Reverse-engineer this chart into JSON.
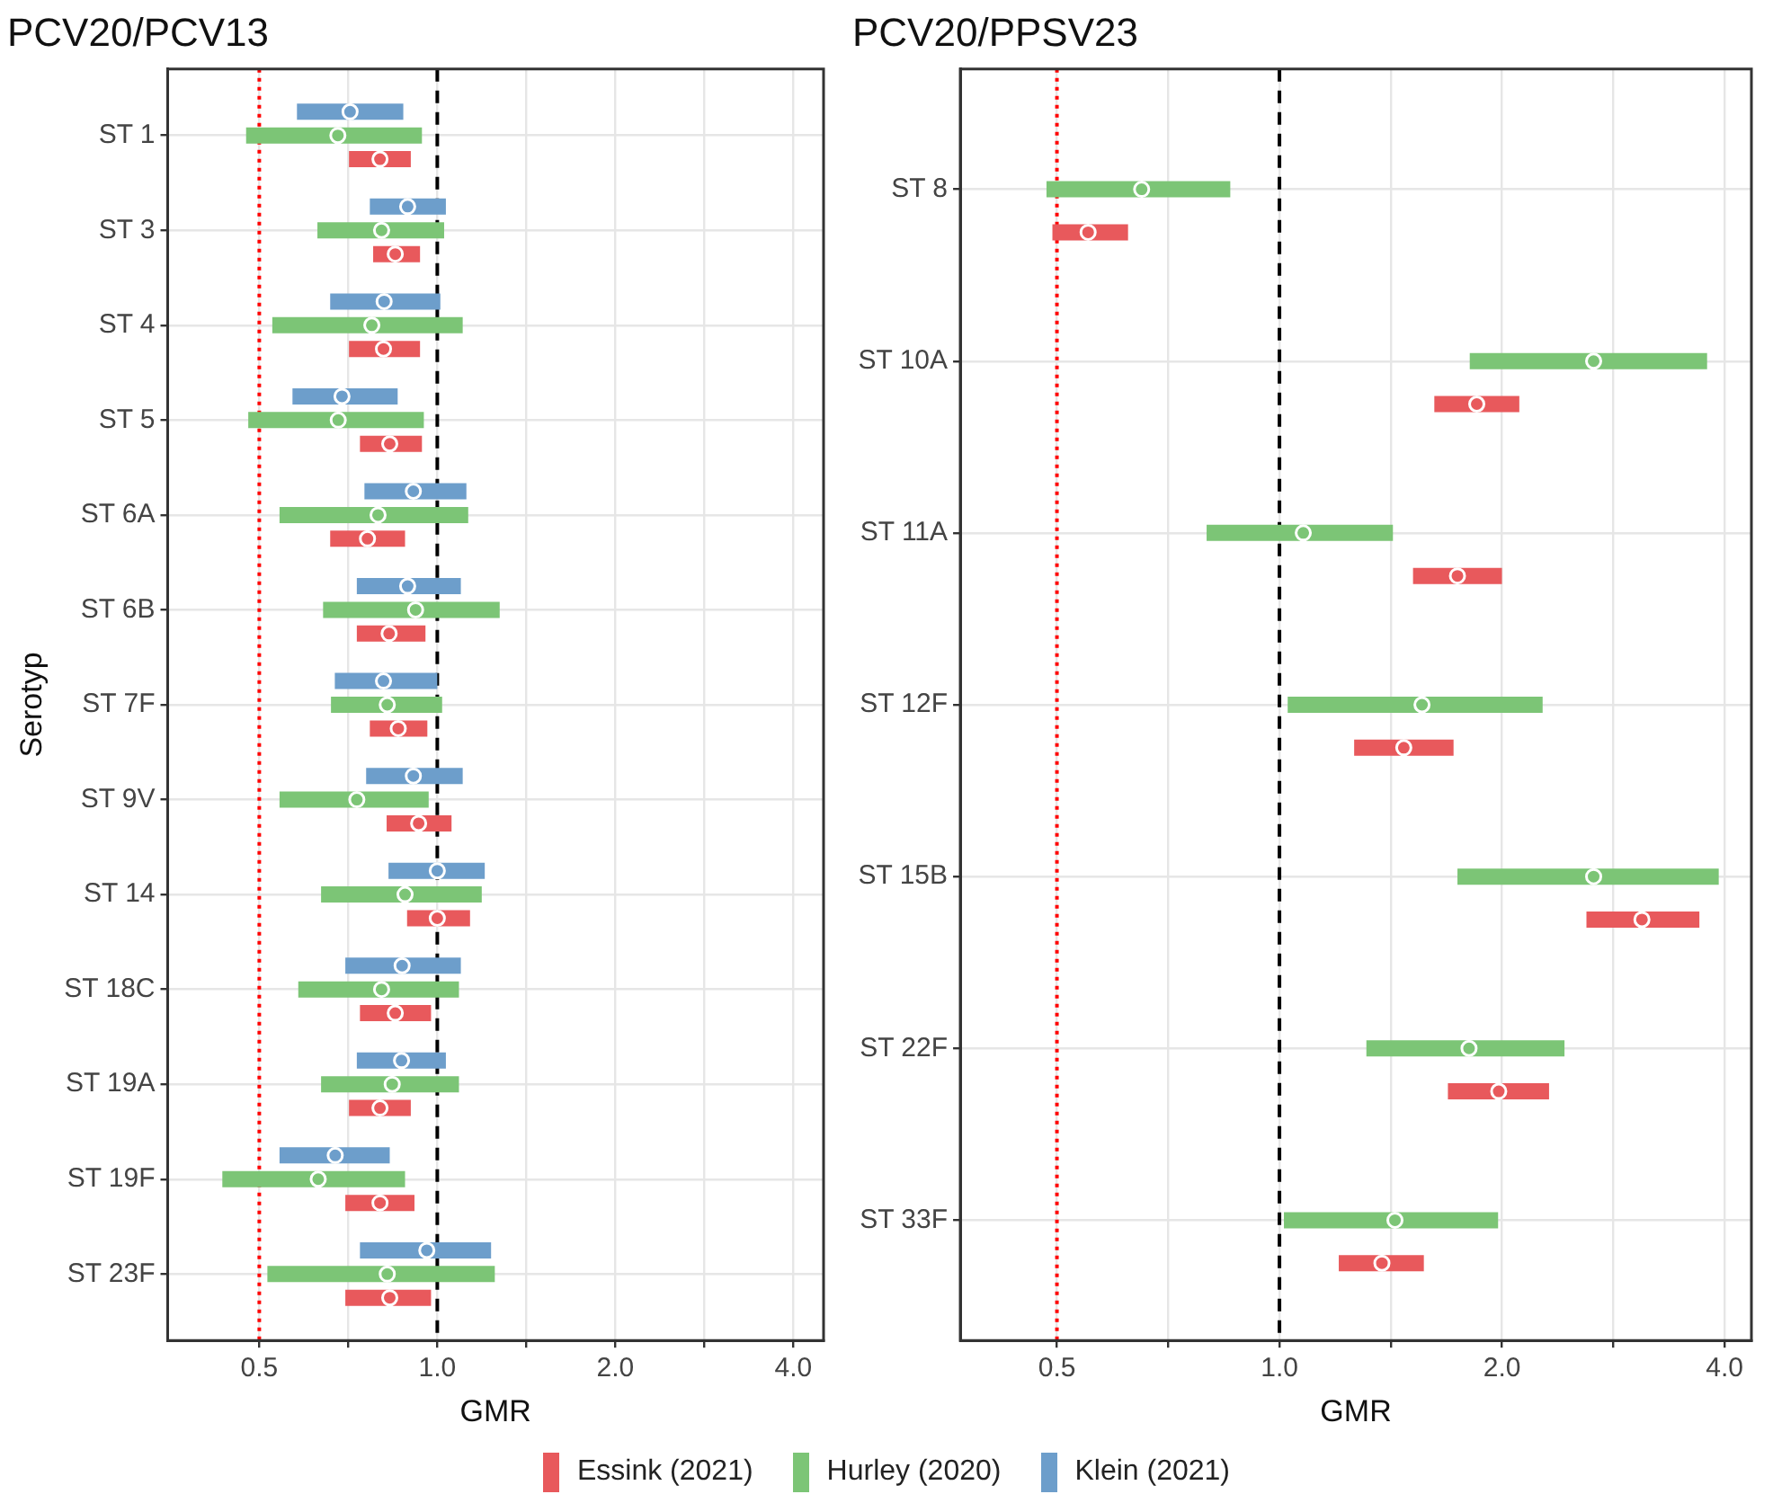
{
  "chart_data": [
    {
      "type": "scatter",
      "title": "PCV20/PCV13",
      "xlabel": "GMR",
      "ylabel": "Serotyp",
      "orientation": "horizontal",
      "log": "x",
      "categories": [
        "ST 1",
        "ST 3",
        "ST 4",
        "ST 5",
        "ST 6A",
        "ST 6B",
        "ST 7F",
        "ST 9V",
        "ST 14",
        "ST 18C",
        "ST 19A",
        "ST 19F",
        "ST 23F"
      ],
      "series": [
        {
          "name": "Essink (2021)",
          "color": "#e8595c",
          "values": [
            0.8,
            0.849,
            0.811,
            0.831,
            0.762,
            0.829,
            0.859,
            0.93,
            1.0,
            0.849,
            0.8,
            0.8,
            0.831
          ],
          "errors": [
            [
              0.709,
              0.902
            ],
            [
              0.779,
              0.935
            ],
            [
              0.709,
              0.935
            ],
            [
              0.74,
              0.942
            ],
            [
              0.659,
              0.882
            ],
            [
              0.731,
              0.955
            ],
            [
              0.769,
              0.962
            ],
            [
              0.821,
              1.057
            ],
            [
              0.889,
              1.136
            ],
            [
              0.74,
              0.976
            ],
            [
              0.709,
              0.902
            ],
            [
              0.699,
              0.915
            ],
            [
              0.699,
              0.976
            ]
          ]
        },
        {
          "name": "Hurley (2020)",
          "color": "#7cc576",
          "values": [
            0.679,
            0.805,
            0.775,
            0.68,
            0.794,
            0.919,
            0.823,
            0.731,
            0.882,
            0.805,
            0.839,
            0.629,
            0.823
          ],
          "errors": [
            [
              0.475,
              0.942
            ],
            [
              0.627,
              1.027
            ],
            [
              0.526,
              1.104
            ],
            [
              0.479,
              0.949
            ],
            [
              0.541,
              1.128
            ],
            [
              0.641,
              1.275
            ],
            [
              0.661,
              1.019
            ],
            [
              0.541,
              0.967
            ],
            [
              0.636,
              1.189
            ],
            [
              0.582,
              1.088
            ],
            [
              0.636,
              1.088
            ],
            [
              0.433,
              0.882
            ],
            [
              0.516,
              1.251
            ]
          ]
        },
        {
          "name": "Klein (2021)",
          "color": "#6d9ecb",
          "values": [
            0.712,
            0.891,
            0.813,
            0.69,
            0.911,
            0.891,
            0.811,
            0.911,
            1.0,
            0.872,
            0.87,
            0.672,
            0.96
          ],
          "errors": [
            [
              0.579,
              0.876
            ],
            [
              0.769,
              1.034
            ],
            [
              0.659,
              1.012
            ],
            [
              0.569,
              0.857
            ],
            [
              0.753,
              1.12
            ],
            [
              0.731,
              1.096
            ],
            [
              0.671,
              1.0
            ],
            [
              0.758,
              1.104
            ],
            [
              0.827,
              1.203
            ],
            [
              0.699,
              1.096
            ],
            [
              0.731,
              1.034
            ],
            [
              0.541,
              0.831
            ],
            [
              0.74,
              1.233
            ]
          ]
        }
      ],
      "xlim": [
        0.35,
        4.5
      ],
      "xticks": [
        0.5,
        {
          "value": 0.707,
          "label": null
        },
        {
          "value": 1,
          "label": "1.0"
        },
        {
          "value": 1.414,
          "label": null
        },
        {
          "value": 2,
          "label": "2.0"
        },
        {
          "value": 2.828,
          "label": null
        },
        {
          "value": 4,
          "label": "4.0"
        }
      ],
      "ref_lines": [
        {
          "axis": "x",
          "value": 0.5,
          "color": "#ff0000",
          "line_style": "dotted"
        },
        {
          "axis": "x",
          "value": 1,
          "color": "#000000",
          "line_style": "dashed"
        }
      ],
      "grid": true,
      "legend": "bottom",
      "marker": "circle"
    },
    {
      "type": "scatter",
      "title": "PCV20/PPSV23",
      "xlabel": "GMR",
      "orientation": "horizontal",
      "log": "x",
      "categories": [
        "ST 8",
        "ST 10A",
        "ST 11A",
        "ST 12F",
        "ST 15B",
        "ST 22F",
        "ST 33F"
      ],
      "series": [
        {
          "color": "#e8595c",
          "values": [
            0.551,
            1.849,
            1.741,
            1.473,
            3.093,
            1.98,
            1.376
          ],
          "errors": [
            [
              0.493,
              0.624
            ],
            [
              1.62,
              2.111
            ],
            [
              1.516,
              2.0
            ],
            [
              1.262,
              1.72
            ],
            [
              2.602,
              3.699
            ],
            [
              1.69,
              2.316
            ],
            [
              1.203,
              1.568
            ]
          ]
        },
        {
          "color": "#7cc576",
          "values": [
            0.651,
            2.661,
            1.077,
            1.559,
            2.661,
            1.805,
            1.433
          ],
          "errors": [
            [
              0.484,
              0.858
            ],
            [
              1.809,
              3.789
            ],
            [
              0.797,
              1.424
            ],
            [
              1.026,
              2.27
            ],
            [
              1.741,
              3.929
            ],
            [
              1.311,
              2.43
            ],
            [
              1.014,
              1.976
            ]
          ]
        }
      ],
      "xlim": [
        0.37,
        4.35
      ],
      "xticks": [
        0.5,
        {
          "value": 0.707,
          "label": null
        },
        {
          "value": 1,
          "label": "1.0"
        },
        {
          "value": 1.414,
          "label": null
        },
        {
          "value": 2,
          "label": "2.0"
        },
        {
          "value": 2.828,
          "label": null
        },
        {
          "value": 4,
          "label": "4.0"
        }
      ],
      "ref_lines": [
        {
          "axis": "x",
          "value": 0.5,
          "color": "#ff0000",
          "line_style": "dotted"
        },
        {
          "axis": "x",
          "value": 1,
          "color": "#000000",
          "line_style": "dashed"
        }
      ],
      "grid": true,
      "marker": "circle"
    }
  ]
}
